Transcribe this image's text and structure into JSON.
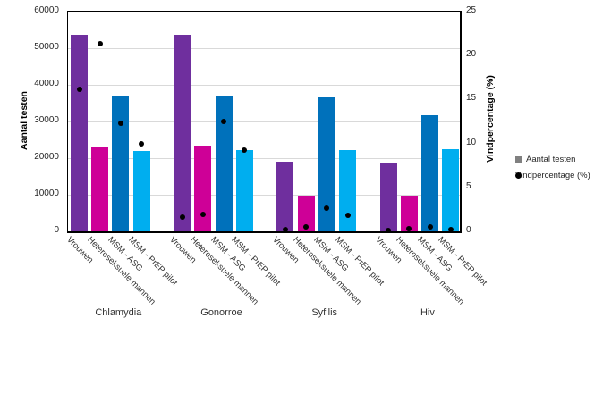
{
  "chart_data": {
    "type": "bar",
    "title": "",
    "groups": [
      "Chlamydia",
      "Gonorroe",
      "Syfilis",
      "Hiv"
    ],
    "categories": [
      "Vrouwen",
      "Heteroseksuele mannen",
      "MSM - ASG",
      "MSM - PrEP pilot"
    ],
    "bar_series": {
      "name": "Aantal testen",
      "type": "bar",
      "axis": "left",
      "colors_by_category": [
        "#6F2F9E",
        "#CE0097",
        "#0071BB",
        "#00AEEF"
      ],
      "values": [
        [
          53700,
          23200,
          36900,
          22000
        ],
        [
          53700,
          23300,
          37000,
          22100
        ],
        [
          19000,
          9700,
          36500,
          22300
        ],
        [
          18800,
          9700,
          31800,
          22500
        ]
      ]
    },
    "dot_series": {
      "name": "Vindpercentage (%)",
      "type": "scatter",
      "axis": "right",
      "color": "#000000",
      "values": [
        [
          16.2,
          21.3,
          12.3,
          10.0
        ],
        [
          1.6,
          1.9,
          12.5,
          9.3
        ],
        [
          0.2,
          0.5,
          2.6,
          1.8
        ],
        [
          0.1,
          0.3,
          0.5,
          0.2
        ]
      ]
    },
    "left_axis": {
      "label": "Aantal testen",
      "min": 0,
      "max": 60000,
      "step": 10000,
      "tick_labels": [
        "0",
        "10000",
        "20000",
        "30000",
        "40000",
        "50000",
        "60000"
      ]
    },
    "right_axis": {
      "label": "Vindpercentage (%)",
      "min": 0,
      "max": 25,
      "step": 5,
      "tick_labels": [
        "0",
        "5",
        "10",
        "15",
        "20",
        "25"
      ]
    },
    "legend": {
      "position": "right-middle",
      "items": [
        {
          "label": "Aantal testen",
          "marker": "square",
          "color": "#808080"
        },
        {
          "label": "Vindpercentage (%)",
          "marker": "dot",
          "color": "#000000"
        }
      ]
    },
    "grid": {
      "horizontal": true,
      "color": "#d9d9d9"
    },
    "colors": {
      "axis_line": "#000000",
      "text": "#262626",
      "background": "#FFFFFF"
    }
  }
}
